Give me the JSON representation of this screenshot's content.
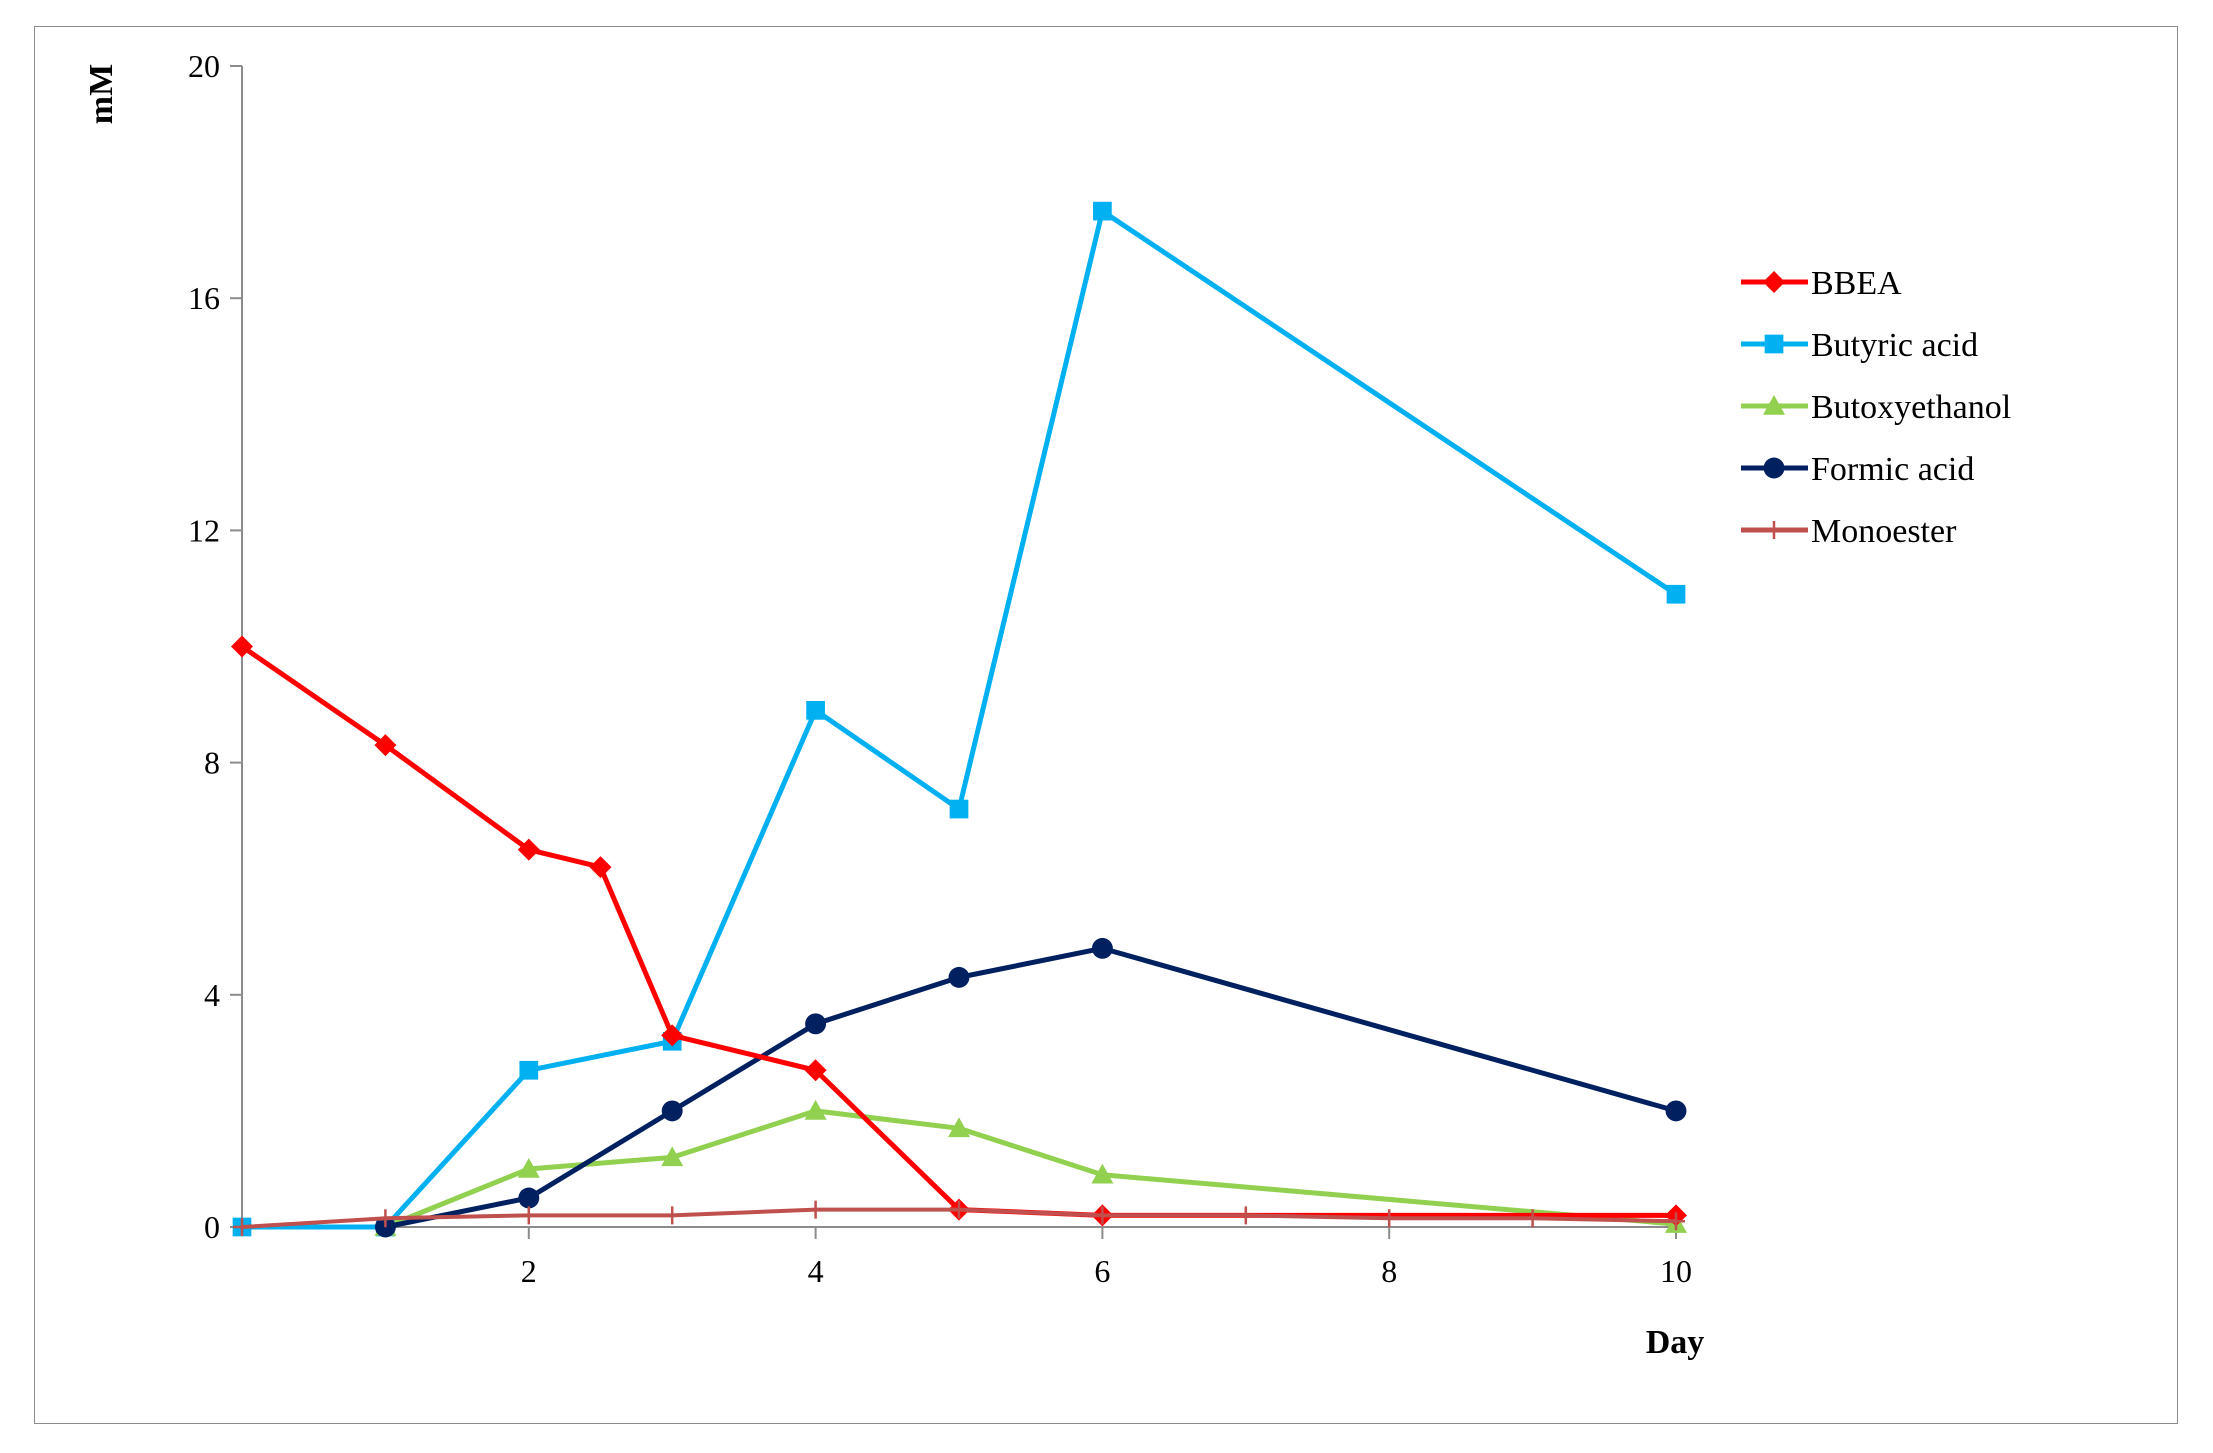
{
  "chart_data": {
    "type": "line",
    "title": "",
    "xlabel": "Day",
    "ylabel": "mM",
    "xlim": [
      0,
      10
    ],
    "ylim": [
      0,
      20
    ],
    "x_ticks": [
      2,
      4,
      6,
      8,
      10
    ],
    "y_ticks": [
      0,
      4,
      8,
      12,
      16,
      20
    ],
    "grid": false,
    "legend_position": "right",
    "series": [
      {
        "name": "BBEA",
        "color": "#ff0000",
        "marker": "diamond",
        "x": [
          0,
          1,
          2,
          2.5,
          3,
          4,
          5,
          6,
          10
        ],
        "y": [
          10,
          8.3,
          6.5,
          6.2,
          3.3,
          2.7,
          0.3,
          0.2,
          0.2
        ]
      },
      {
        "name": "Butyric acid",
        "color": "#00b0f0",
        "marker": "square",
        "x": [
          0,
          1,
          2,
          3,
          4,
          5,
          6,
          10
        ],
        "y": [
          0,
          0,
          2.7,
          3.2,
          8.9,
          7.2,
          17.5,
          10.9
        ]
      },
      {
        "name": "Butoxyethanol",
        "color": "#92d050",
        "marker": "triangle",
        "x": [
          1,
          2,
          3,
          4,
          5,
          6,
          10
        ],
        "y": [
          0,
          1,
          1.2,
          2,
          1.7,
          0.9,
          0.05
        ]
      },
      {
        "name": "Formic acid",
        "color": "#002060",
        "marker": "circle",
        "x": [
          1,
          2,
          3,
          4,
          5,
          6,
          10
        ],
        "y": [
          0,
          0.5,
          2,
          3.5,
          4.3,
          4.8,
          2
        ]
      },
      {
        "name": "Monoester",
        "color": "#c0504d",
        "marker": "plus",
        "x": [
          0,
          1,
          2,
          3,
          4,
          5,
          6,
          7,
          8,
          9,
          10
        ],
        "y": [
          0,
          0.15,
          0.2,
          0.2,
          0.3,
          0.3,
          0.2,
          0.2,
          0.15,
          0.15,
          0.1
        ]
      }
    ]
  }
}
